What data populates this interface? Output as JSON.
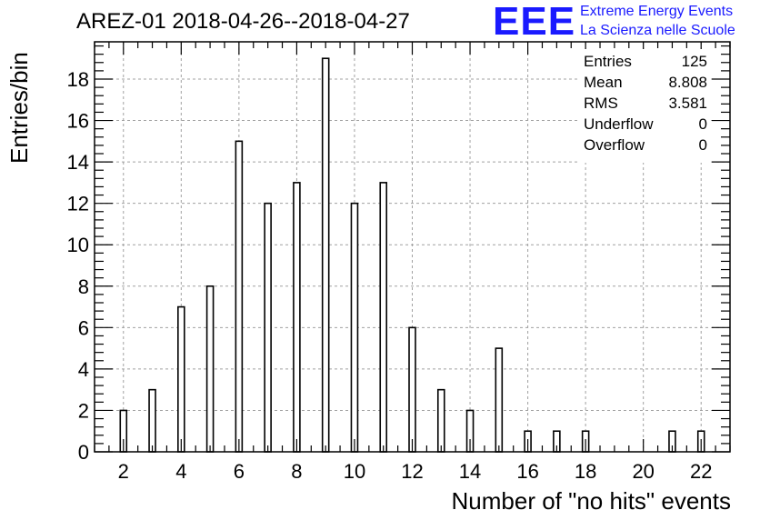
{
  "title": "AREZ-01 2018-04-26--2018-04-27",
  "logo": {
    "mark": "EEE",
    "line1": "Extreme Energy Events",
    "line2": "La Scienza nelle Scuole",
    "color": "#1a1aff"
  },
  "stats": [
    {
      "label": "Entries",
      "value": "125"
    },
    {
      "label": "Mean",
      "value": "8.808"
    },
    {
      "label": "RMS",
      "value": "3.581"
    },
    {
      "label": "Underflow",
      "value": "0"
    },
    {
      "label": "Overflow",
      "value": "0"
    }
  ],
  "chart_data": {
    "type": "bar",
    "title": "AREZ-01 2018-04-26--2018-04-27",
    "xlabel": "Number of \"no hits\" events",
    "ylabel": "Entries/bin",
    "xlim": [
      1,
      23
    ],
    "ylim": [
      0,
      19.8
    ],
    "grid": true,
    "x_ticks": [
      2,
      4,
      6,
      8,
      10,
      12,
      14,
      16,
      18,
      20,
      22
    ],
    "y_ticks": [
      0,
      2,
      4,
      6,
      8,
      10,
      12,
      14,
      16,
      18
    ],
    "bins": [
      {
        "x": 2,
        "count": 2
      },
      {
        "x": 3,
        "count": 3
      },
      {
        "x": 4,
        "count": 7
      },
      {
        "x": 5,
        "count": 8
      },
      {
        "x": 6,
        "count": 15
      },
      {
        "x": 7,
        "count": 12
      },
      {
        "x": 8,
        "count": 13
      },
      {
        "x": 9,
        "count": 19
      },
      {
        "x": 10,
        "count": 12
      },
      {
        "x": 11,
        "count": 13
      },
      {
        "x": 12,
        "count": 6
      },
      {
        "x": 13,
        "count": 3
      },
      {
        "x": 14,
        "count": 2
      },
      {
        "x": 15,
        "count": 5
      },
      {
        "x": 16,
        "count": 1
      },
      {
        "x": 17,
        "count": 1
      },
      {
        "x": 18,
        "count": 1
      },
      {
        "x": 21,
        "count": 1
      },
      {
        "x": 22,
        "count": 1
      }
    ]
  }
}
